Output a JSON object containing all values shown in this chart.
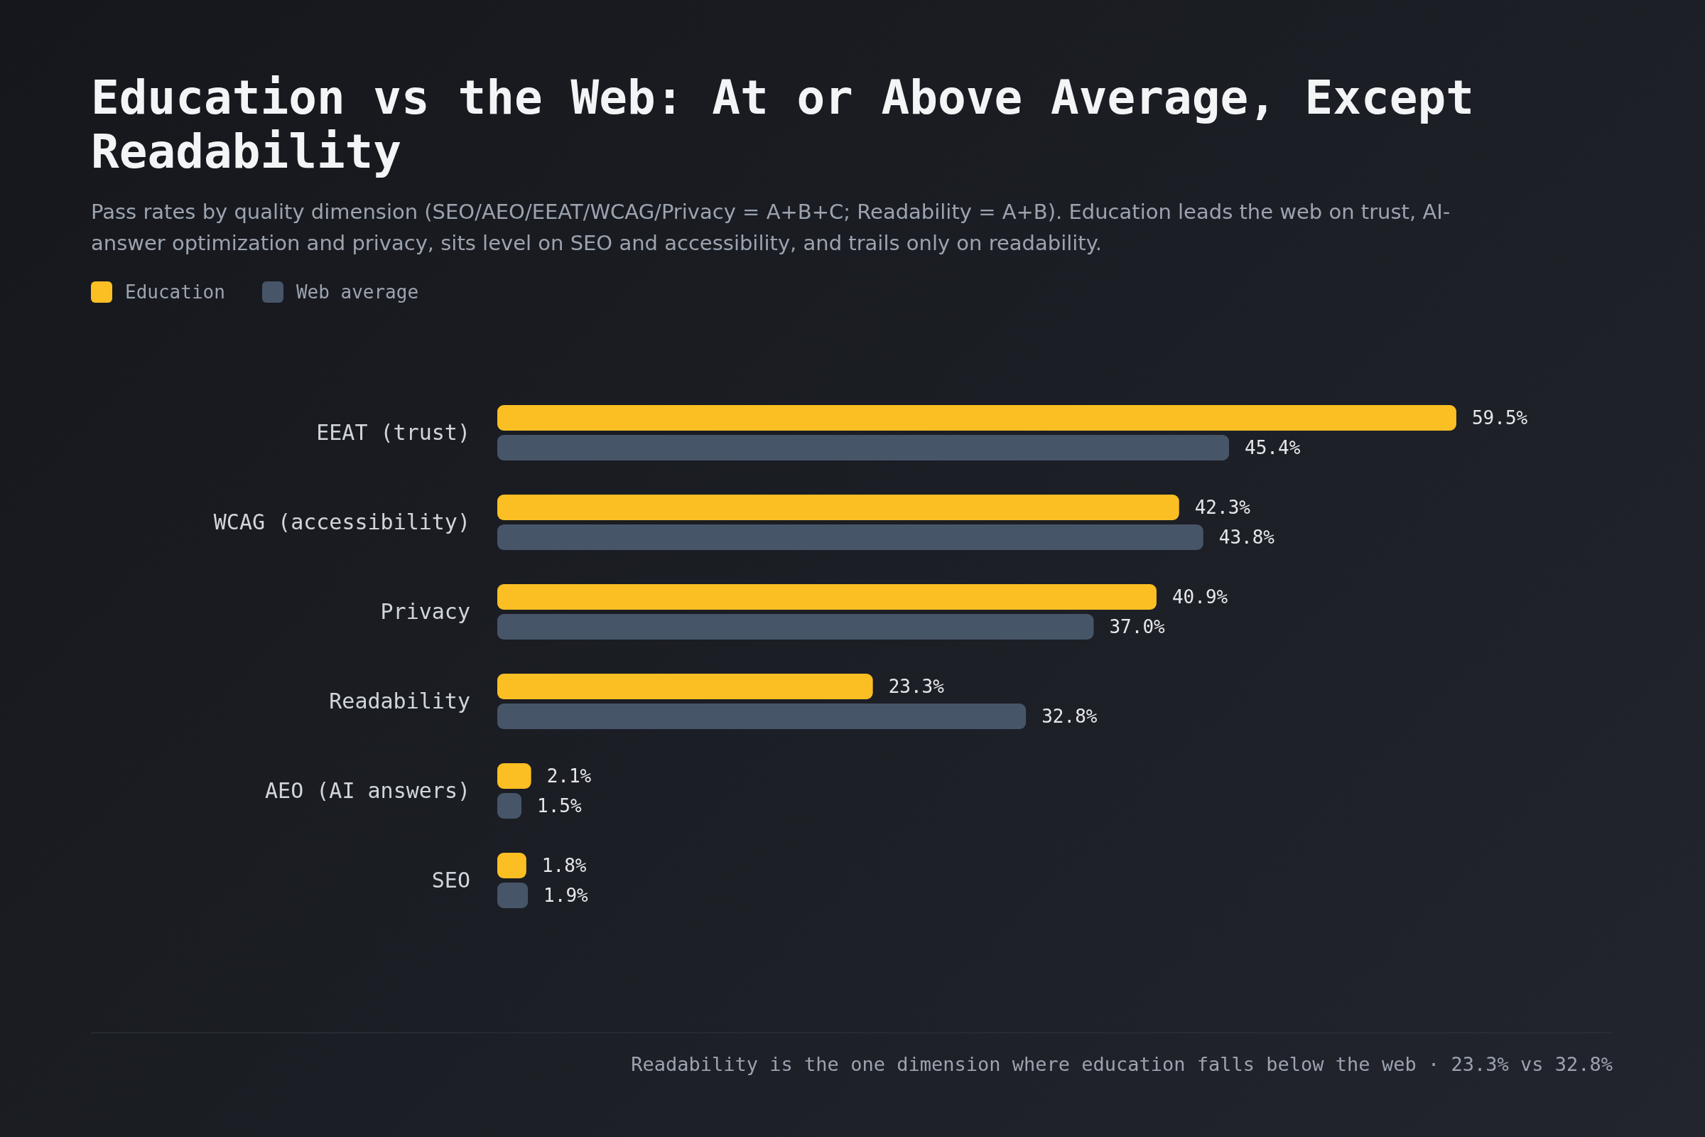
{
  "chart_data": {
    "type": "bar",
    "orientation": "horizontal",
    "title": "Education vs the Web: At or Above Average, Except Readability",
    "subtitle": "Pass rates by quality dimension (SEO/AEO/EEAT/WCAG/Privacy = A+B+C; Readability = A+B). Education leads the web on trust, AI-answer optimization and privacy, sits level on SEO and accessibility, and trails only on readability.",
    "categories": [
      "EEAT (trust)",
      "WCAG (accessibility)",
      "Privacy",
      "Readability",
      "AEO (AI answers)",
      "SEO"
    ],
    "series": [
      {
        "name": "Education",
        "color": "#fbbf24",
        "values": [
          59.5,
          42.3,
          40.9,
          23.3,
          2.1,
          1.8
        ],
        "value_labels": [
          "59.5%",
          "42.3%",
          "40.9%",
          "23.3%",
          "2.1%",
          "1.8%"
        ]
      },
      {
        "name": "Web average",
        "color": "#475569",
        "values": [
          45.4,
          43.8,
          37.0,
          32.8,
          1.5,
          1.9
        ],
        "value_labels": [
          "45.4%",
          "43.8%",
          "37.0%",
          "32.8%",
          "1.5%",
          "1.9%"
        ]
      }
    ],
    "tick_labels": "y",
    "legend": "top left",
    "annotations": [
      "Readability is the one dimension where education falls below the web · 23.3% vs 32.8%"
    ]
  }
}
